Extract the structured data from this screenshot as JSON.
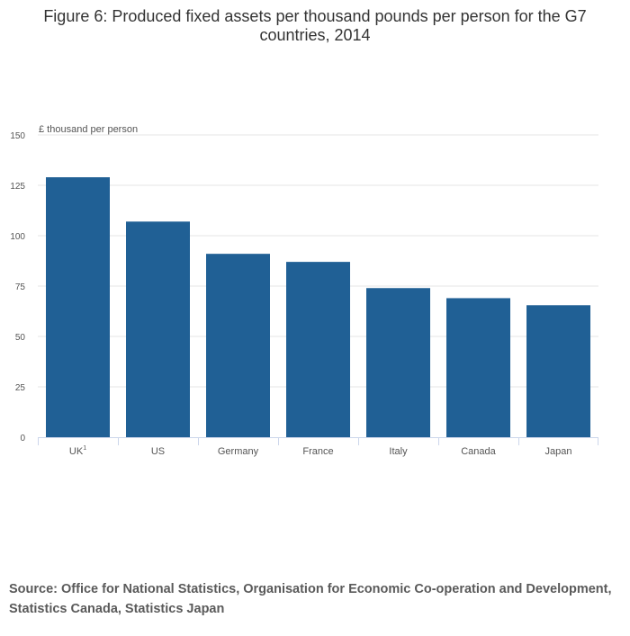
{
  "title": "Figure 6: Produced fixed assets per thousand pounds per person for the G7 countries, 2014",
  "source": "Source: Office for National Statistics, Organisation for Economic Co-operation and Development, Statistics Canada, Statistics Japan",
  "colors": {
    "bar": "#206095",
    "grid": "#e6e6e6",
    "axis": "#ccd6eb",
    "text": "#555555"
  },
  "chart_data": {
    "type": "bar",
    "title": "Figure 6: Produced fixed assets per thousand pounds per person for the G7 countries, 2014",
    "ylabel": "£ thousand per person",
    "xlabel": "",
    "categories": [
      "UK",
      "US",
      "Germany",
      "France",
      "Italy",
      "Canada",
      "Japan"
    ],
    "category_superscripts": [
      "1",
      "",
      "",
      "",
      "",
      "",
      ""
    ],
    "values": [
      129,
      107,
      91,
      87,
      74,
      69,
      65.5
    ],
    "ylim": [
      0,
      150
    ],
    "yticks": [
      0,
      25,
      50,
      75,
      100,
      125,
      150
    ],
    "grid": true,
    "legend": "none"
  }
}
